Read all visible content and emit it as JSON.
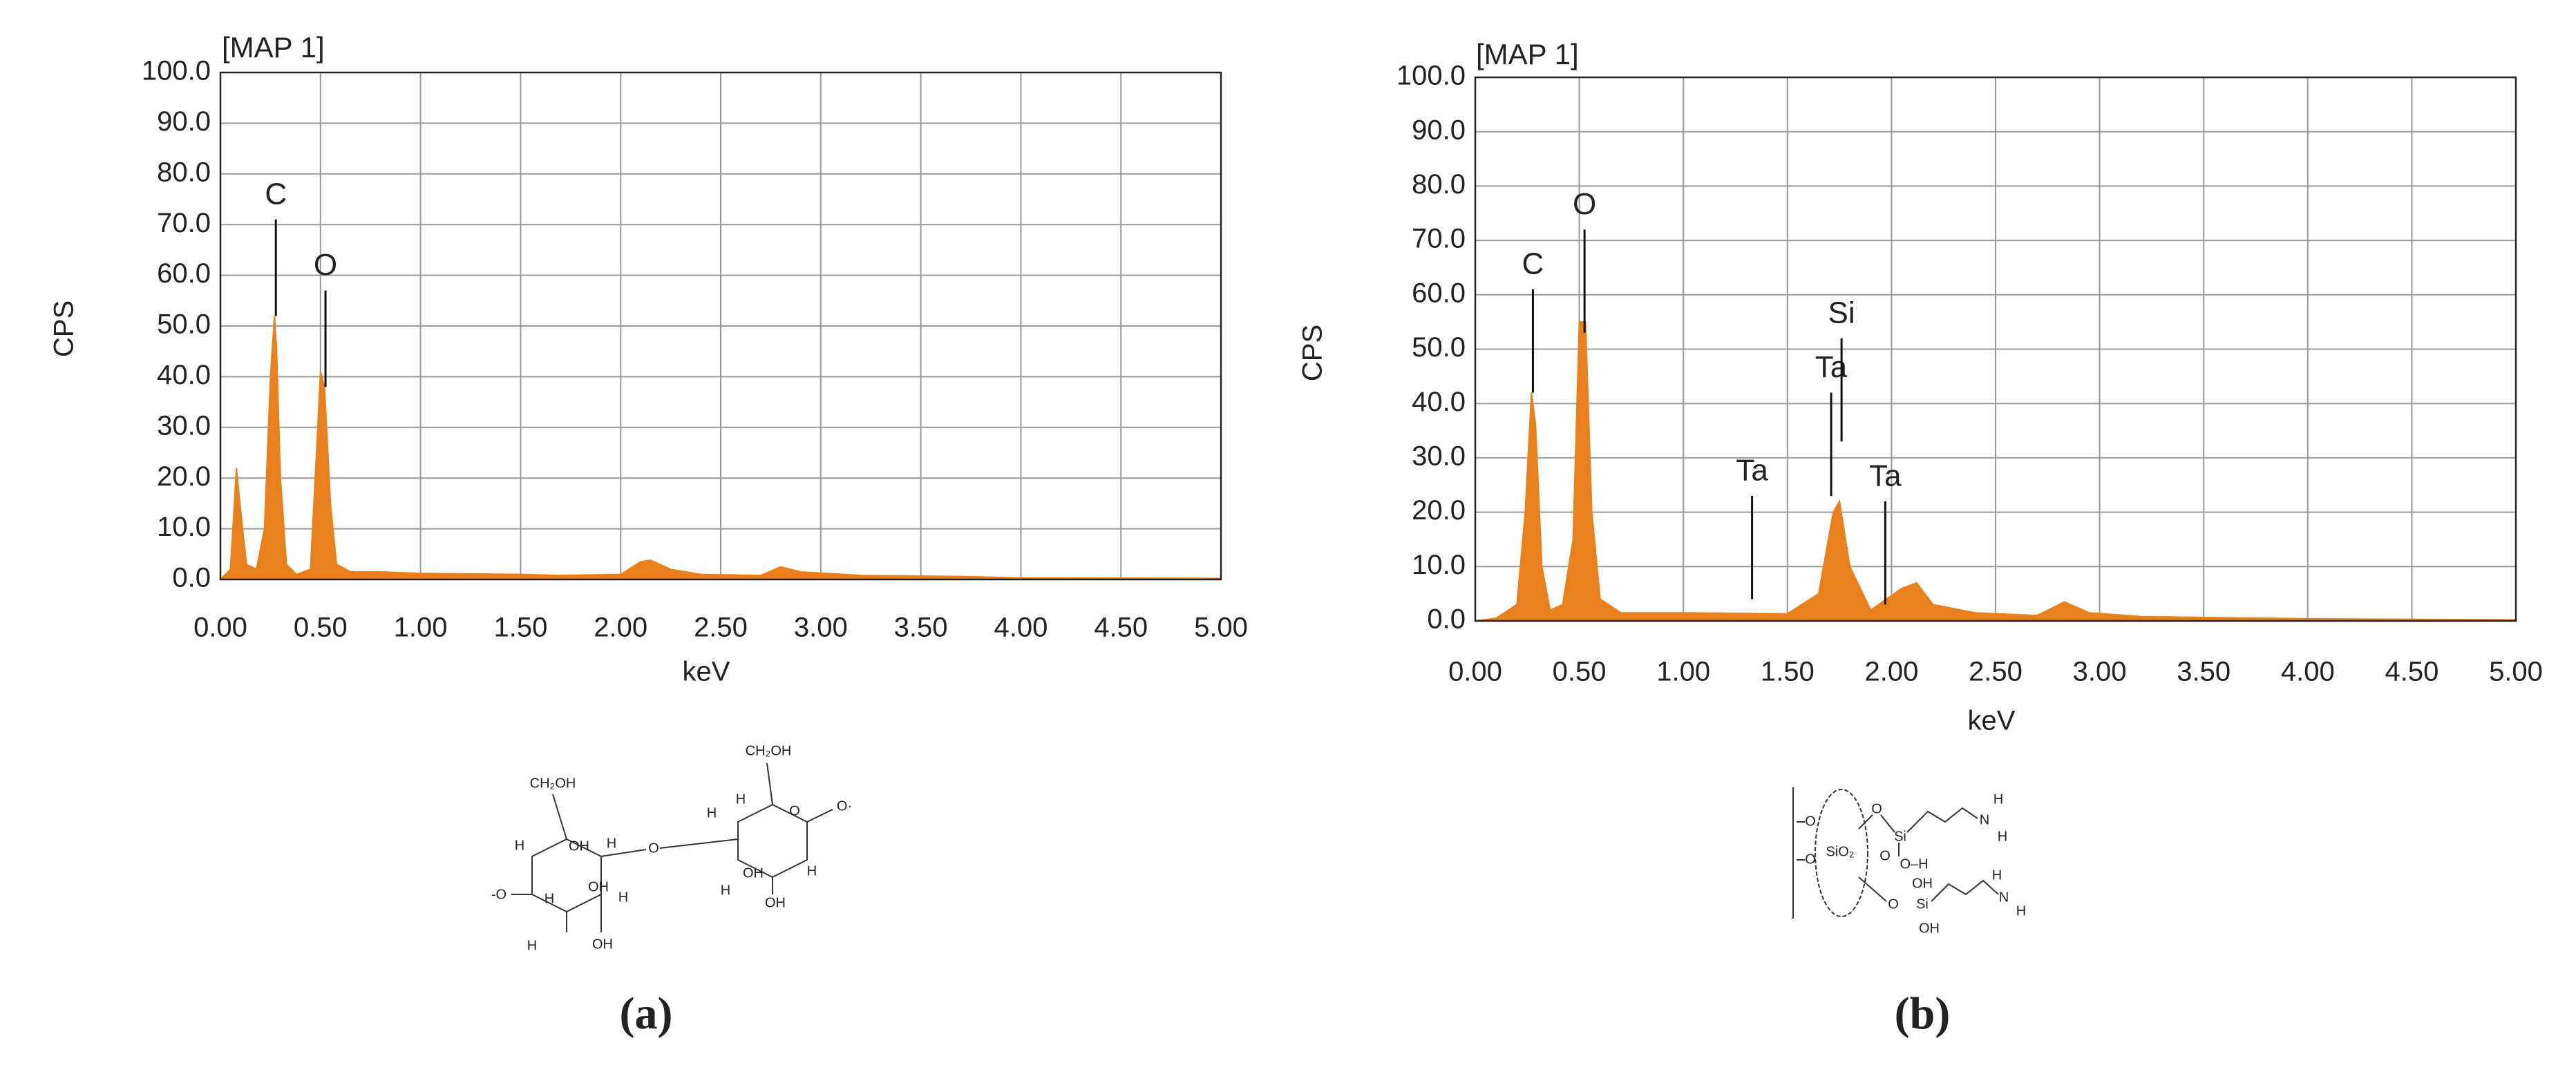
{
  "chart_data": [
    {
      "type": "area",
      "title": "[MAP 1]",
      "xlabel": "keV",
      "ylabel": "CPS",
      "panel_label": "(a)",
      "color": "#e8801e",
      "grid": true,
      "x": [
        0.0,
        0.05,
        0.08,
        0.1,
        0.13,
        0.18,
        0.22,
        0.25,
        0.27,
        0.28,
        0.3,
        0.33,
        0.38,
        0.45,
        0.48,
        0.5,
        0.52,
        0.55,
        0.58,
        0.65,
        0.8,
        1.0,
        1.5,
        1.7,
        2.0,
        2.1,
        2.15,
        2.25,
        2.4,
        2.7,
        2.8,
        2.9,
        3.2,
        3.7,
        4.0,
        5.0
      ],
      "values": [
        0,
        2,
        22,
        14,
        3,
        2,
        10,
        40,
        52,
        46,
        20,
        3,
        1,
        2,
        25,
        41,
        38,
        15,
        3,
        1.5,
        1.5,
        1.2,
        1,
        0.8,
        1,
        3.5,
        3.8,
        2,
        1,
        0.8,
        2.5,
        1.5,
        0.8,
        0.6,
        0.3,
        0.2
      ],
      "xlim": [
        0,
        5
      ],
      "ylim": [
        0,
        100
      ],
      "xticks": [
        {
          "value": 0,
          "label": "0.00"
        },
        {
          "value": 0.5,
          "label": "0.50"
        },
        {
          "value": 1,
          "label": "1.00"
        },
        {
          "value": 1.5,
          "label": "1.50"
        },
        {
          "value": 2,
          "label": "2.00"
        },
        {
          "value": 2.5,
          "label": "2.50"
        },
        {
          "value": 3,
          "label": "3.00"
        },
        {
          "value": 3.5,
          "label": "3.50"
        },
        {
          "value": 4,
          "label": "4.00"
        },
        {
          "value": 4.5,
          "label": "4.50"
        },
        {
          "value": 5,
          "label": "5.00"
        }
      ],
      "yticks": [
        {
          "value": 0,
          "label": "0.0"
        },
        {
          "value": 10,
          "label": "10.0"
        },
        {
          "value": 20,
          "label": "20.0"
        },
        {
          "value": 30,
          "label": "30.0"
        },
        {
          "value": 40,
          "label": "40.0"
        },
        {
          "value": 50,
          "label": "50.0"
        },
        {
          "value": 60,
          "label": "60.0"
        },
        {
          "value": 70,
          "label": "70.0"
        },
        {
          "value": 80,
          "label": "80.0"
        },
        {
          "value": 90,
          "label": "90.0"
        },
        {
          "value": 100,
          "label": "100.0"
        }
      ],
      "annotations": [
        {
          "text": "C",
          "x": 0.277,
          "y": 71
        },
        {
          "text": "O",
          "x": 0.525,
          "y": 57
        }
      ]
    },
    {
      "type": "area",
      "title": "[MAP 1]",
      "xlabel": "keV",
      "ylabel": "CPS",
      "panel_label": "(b)",
      "color": "#e8801e",
      "grid": true,
      "x": [
        0.0,
        0.1,
        0.2,
        0.24,
        0.27,
        0.29,
        0.32,
        0.36,
        0.42,
        0.47,
        0.5,
        0.53,
        0.56,
        0.6,
        0.7,
        1.0,
        1.5,
        1.65,
        1.72,
        1.75,
        1.8,
        1.9,
        2.05,
        2.12,
        2.2,
        2.4,
        2.7,
        2.83,
        2.95,
        3.2,
        4.0,
        5.0
      ],
      "values": [
        0,
        0.5,
        3,
        20,
        42,
        36,
        10,
        2,
        3,
        15,
        55,
        55,
        20,
        4,
        1.5,
        1.5,
        1.3,
        5,
        20,
        22,
        10,
        2,
        6,
        7,
        3,
        1.5,
        1,
        3.5,
        1.5,
        0.8,
        0.4,
        0.2
      ],
      "xlim": [
        0,
        5
      ],
      "ylim": [
        0,
        100
      ],
      "xticks": [
        {
          "value": 0,
          "label": "0.00"
        },
        {
          "value": 0.5,
          "label": "0.50"
        },
        {
          "value": 1,
          "label": "1.00"
        },
        {
          "value": 1.5,
          "label": "1.50"
        },
        {
          "value": 2,
          "label": "2.00"
        },
        {
          "value": 2.5,
          "label": "2.50"
        },
        {
          "value": 3,
          "label": "3.00"
        },
        {
          "value": 3.5,
          "label": "3.50"
        },
        {
          "value": 4,
          "label": "4.00"
        },
        {
          "value": 4.5,
          "label": "4.50"
        },
        {
          "value": 5,
          "label": "5.00"
        }
      ],
      "yticks": [
        {
          "value": 0,
          "label": "0.0"
        },
        {
          "value": 10,
          "label": "10.0"
        },
        {
          "value": 20,
          "label": "20.0"
        },
        {
          "value": 30,
          "label": "30.0"
        },
        {
          "value": 40,
          "label": "40.0"
        },
        {
          "value": 50,
          "label": "50.0"
        },
        {
          "value": 60,
          "label": "60.0"
        },
        {
          "value": 70,
          "label": "70.0"
        },
        {
          "value": 80,
          "label": "80.0"
        },
        {
          "value": 90,
          "label": "90.0"
        },
        {
          "value": 100,
          "label": "100.0"
        }
      ],
      "annotations": [
        {
          "text": "C",
          "x": 0.277,
          "y": 61
        },
        {
          "text": "O",
          "x": 0.525,
          "y": 72
        },
        {
          "text": "Ta",
          "x": 1.33,
          "y": 23
        },
        {
          "text": "Ta",
          "x": 1.71,
          "y": 42
        },
        {
          "text": "Si",
          "x": 1.76,
          "y": 52
        },
        {
          "text": "Ta",
          "x": 1.97,
          "y": 22
        }
      ]
    }
  ],
  "structures": [
    {
      "labels": [
        "CH₂OH",
        "H",
        "OH",
        "H",
        "-O",
        "H",
        "OH",
        "H",
        "H",
        "OH",
        "O",
        "CH₂OH",
        "H",
        "H",
        "O",
        "O·",
        "OH",
        "H",
        "H",
        "OH"
      ]
    },
    {
      "labels": [
        "O",
        "O",
        "SiO₂",
        "O",
        "Si",
        "O",
        "O–H",
        "N",
        "H",
        "H",
        "O",
        "Si",
        "OH",
        "OH",
        "N",
        "H",
        "H"
      ]
    }
  ]
}
